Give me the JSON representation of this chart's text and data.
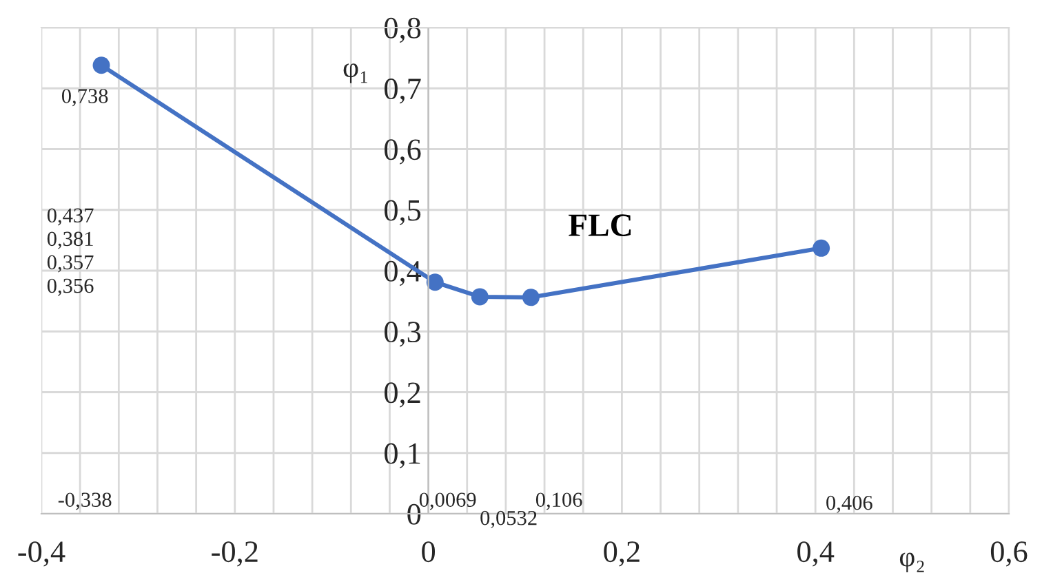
{
  "chart_data": {
    "type": "line",
    "xlabel": "φ₂",
    "ylabel": "φ₁",
    "x": [
      -0.338,
      0.0069,
      0.0532,
      0.106,
      0.406
    ],
    "series": [
      {
        "name": "FLC",
        "color": "#4472c4",
        "values": [
          0.738,
          0.381,
          0.357,
          0.356,
          0.437
        ]
      }
    ],
    "marker": "circle",
    "line_style": "solid",
    "grid": true,
    "legend": false,
    "xlim": [
      -0.4,
      0.6
    ],
    "ylim": [
      0,
      0.8
    ],
    "xticks": [
      {
        "value": -0.4,
        "label": "-0,4"
      },
      {
        "value": -0.36,
        "label": null
      },
      {
        "value": -0.32,
        "label": null
      },
      {
        "value": -0.28,
        "label": null
      },
      {
        "value": -0.24,
        "label": null
      },
      {
        "value": -0.2,
        "label": "-0,2"
      },
      {
        "value": -0.16,
        "label": null
      },
      {
        "value": -0.12,
        "label": null
      },
      {
        "value": -0.08,
        "label": null
      },
      {
        "value": -0.04,
        "label": null
      },
      {
        "value": 0,
        "label": "0"
      },
      {
        "value": 0.04,
        "label": null
      },
      {
        "value": 0.08,
        "label": null
      },
      {
        "value": 0.12,
        "label": null
      },
      {
        "value": 0.16,
        "label": null
      },
      {
        "value": 0.2,
        "label": "0,2"
      },
      {
        "value": 0.24,
        "label": null
      },
      {
        "value": 0.28,
        "label": null
      },
      {
        "value": 0.32,
        "label": null
      },
      {
        "value": 0.36,
        "label": null
      },
      {
        "value": 0.4,
        "label": "0,4"
      },
      {
        "value": 0.44,
        "label": null
      },
      {
        "value": 0.48,
        "label": null
      },
      {
        "value": 0.52,
        "label": null
      },
      {
        "value": 0.56,
        "label": null
      },
      {
        "value": 0.6,
        "label": "0,6"
      }
    ],
    "yticks": [
      0,
      {
        "value": 0.1,
        "label": "0,1"
      },
      {
        "value": 0.2,
        "label": "0,2"
      },
      {
        "value": 0.3,
        "label": "0,3"
      },
      {
        "value": 0.4,
        "label": "0,4"
      },
      {
        "value": 0.5,
        "label": "0,5"
      },
      {
        "value": 0.6,
        "label": "0,6"
      },
      {
        "value": 0.7,
        "label": "0,7"
      },
      {
        "value": 0.8,
        "label": "0,8"
      }
    ],
    "annotations": [
      "0,738",
      "0,437\n0,381\n0,357\n0,356",
      "-0,338",
      "0,0069",
      "0,0532",
      "0,106",
      "0,406"
    ]
  }
}
